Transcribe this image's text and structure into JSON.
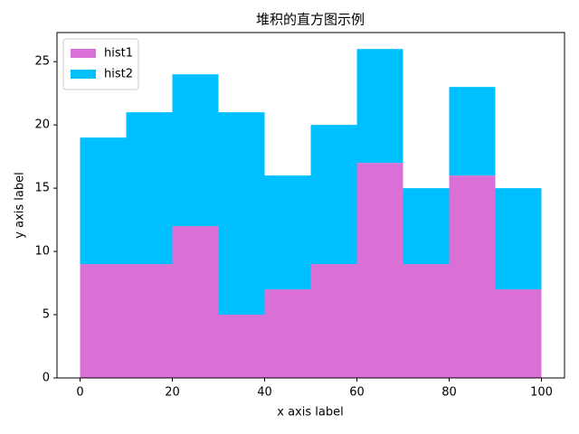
{
  "chart_data": {
    "type": "stacked_histogram",
    "title": "堆积的直方图示例",
    "xlabel": "x axis label",
    "ylabel": "y axis label",
    "bins": [
      0,
      10,
      20,
      30,
      40,
      50,
      60,
      70,
      80,
      90,
      100
    ],
    "series": [
      {
        "name": "hist1",
        "color": "#da70d6",
        "values": [
          9,
          9,
          12,
          5,
          7,
          9,
          17,
          9,
          16,
          7
        ]
      },
      {
        "name": "hist2",
        "color": "#00bfff",
        "values": [
          10,
          12,
          12,
          16,
          9,
          11,
          9,
          6,
          7,
          8
        ]
      }
    ],
    "xlim": [
      -5,
      105
    ],
    "ylim": [
      0,
      27.3
    ],
    "xticks": [
      0,
      20,
      40,
      60,
      80,
      100
    ],
    "yticks": [
      0,
      5,
      10,
      15,
      20,
      25
    ],
    "legend": "upper left"
  }
}
